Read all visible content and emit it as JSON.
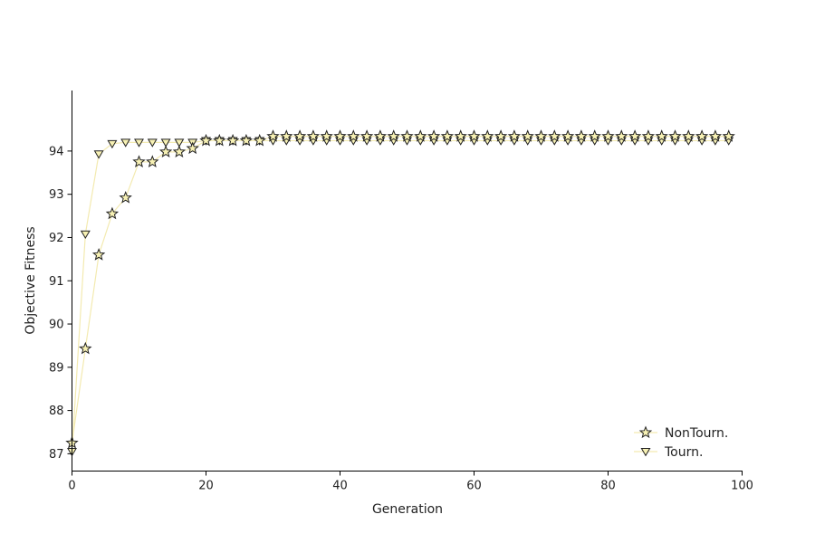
{
  "chart_data": {
    "type": "line",
    "title": "",
    "xlabel": "Generation",
    "ylabel": "Objective Fitness",
    "xlim": [
      0,
      100
    ],
    "ylim": [
      86.6,
      95.4
    ],
    "x_ticks": [
      0,
      20,
      40,
      60,
      80,
      100
    ],
    "y_ticks": [
      87,
      88,
      89,
      90,
      91,
      92,
      93,
      94
    ],
    "grid": false,
    "legend_position": "bottom-right",
    "line_color": "#f3eab0",
    "marker_fill": "#f7f1b4",
    "marker_stroke": "#222222",
    "x": [
      0,
      2,
      4,
      6,
      8,
      10,
      12,
      14,
      16,
      18,
      20,
      22,
      24,
      26,
      28,
      30,
      32,
      34,
      36,
      38,
      40,
      42,
      44,
      46,
      48,
      50,
      52,
      54,
      56,
      58,
      60,
      62,
      64,
      66,
      68,
      70,
      72,
      74,
      76,
      78,
      80,
      82,
      84,
      86,
      88,
      90,
      92,
      94,
      96,
      98
    ],
    "series": [
      {
        "name": "NonTourn.",
        "marker": "star",
        "values": [
          87.25,
          89.43,
          91.6,
          92.55,
          92.92,
          93.75,
          93.75,
          93.98,
          93.98,
          94.06,
          94.24,
          94.24,
          94.24,
          94.24,
          94.24,
          94.34,
          94.34,
          94.34,
          94.34,
          94.34,
          94.34,
          94.34,
          94.34,
          94.34,
          94.34,
          94.34,
          94.34,
          94.34,
          94.34,
          94.34,
          94.34,
          94.34,
          94.34,
          94.34,
          94.34,
          94.34,
          94.34,
          94.34,
          94.34,
          94.34,
          94.34,
          94.34,
          94.34,
          94.34,
          94.34,
          94.34,
          94.34,
          94.34,
          94.34,
          94.34
        ]
      },
      {
        "name": "Tourn.",
        "marker": "triangle-down",
        "values": [
          87.05,
          92.08,
          93.93,
          94.17,
          94.2,
          94.2,
          94.2,
          94.2,
          94.2,
          94.2,
          94.24,
          94.24,
          94.24,
          94.24,
          94.24,
          94.24,
          94.24,
          94.24,
          94.24,
          94.24,
          94.24,
          94.24,
          94.24,
          94.24,
          94.24,
          94.24,
          94.24,
          94.24,
          94.24,
          94.24,
          94.24,
          94.24,
          94.24,
          94.24,
          94.24,
          94.24,
          94.24,
          94.24,
          94.24,
          94.24,
          94.24,
          94.24,
          94.24,
          94.24,
          94.24,
          94.24,
          94.24,
          94.24,
          94.24,
          94.24
        ]
      }
    ]
  }
}
